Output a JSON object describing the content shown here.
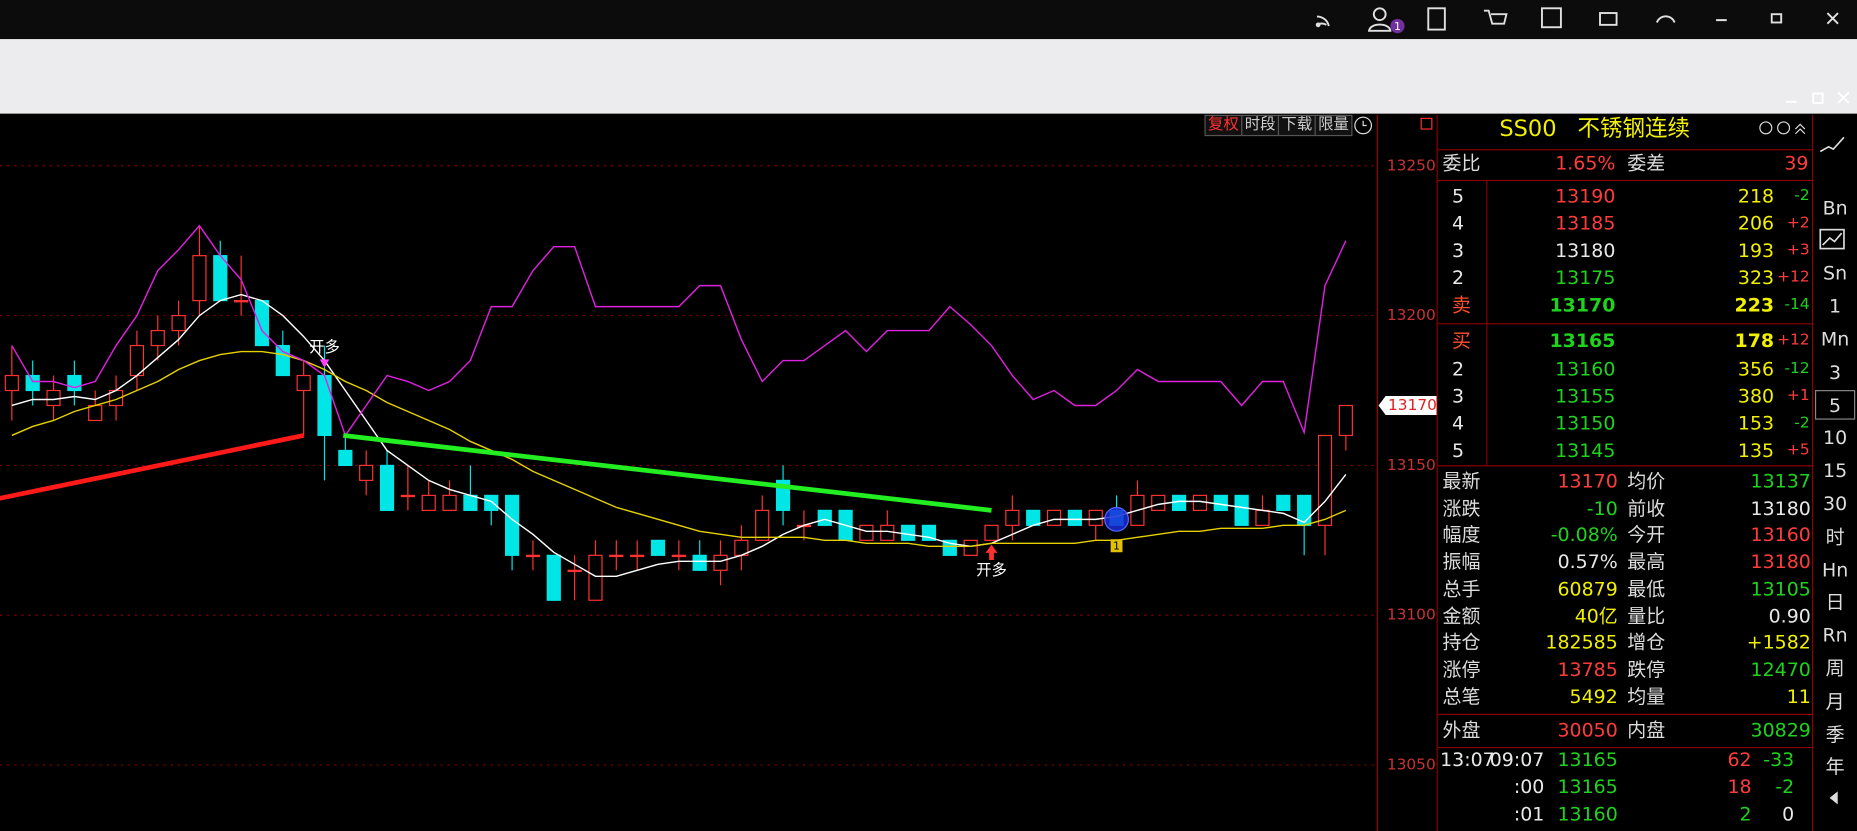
{
  "toolbar": {
    "badge": "1"
  },
  "chart_toolbar": [
    "复权",
    "时段",
    "下载",
    "限量"
  ],
  "chart_data": {
    "type": "candlestick",
    "categories": [
      null,
      null,
      null,
      null,
      null,
      null,
      null,
      null,
      null,
      null,
      null,
      null,
      null,
      null,
      null,
      null,
      null,
      null,
      null,
      null,
      null,
      null,
      null,
      null,
      null,
      null,
      null,
      null,
      null,
      null,
      null,
      null,
      null,
      null,
      null,
      null,
      null,
      null,
      null,
      null,
      null,
      null,
      null,
      null,
      null,
      null,
      null,
      null,
      null,
      null,
      null,
      null,
      null,
      null,
      null,
      null,
      null,
      null,
      null,
      null,
      null,
      null,
      null,
      null,
      null
    ],
    "open": [
      13175,
      13180,
      13170,
      13180,
      13165,
      13170,
      13180,
      13190,
      13195,
      13205,
      13220,
      13205,
      13205,
      13190,
      13175,
      13180,
      13155,
      13145,
      13150,
      13140,
      13135,
      13135,
      13140,
      13140,
      13140,
      13120,
      13120,
      13115,
      13105,
      13120,
      13120,
      13125,
      13120,
      13120,
      13115,
      13120,
      13125,
      13145,
      13130,
      13135,
      13135,
      13125,
      13125,
      13130,
      13130,
      13125,
      13120,
      13125,
      13130,
      13135,
      13130,
      13135,
      13130,
      13135,
      13130,
      13135,
      13140,
      13135,
      13140,
      13140,
      13130,
      13140,
      13140,
      13130,
      13160
    ],
    "high": [
      13190,
      13185,
      13180,
      13185,
      13175,
      13180,
      13195,
      13200,
      13205,
      13230,
      13225,
      13220,
      13205,
      13195,
      13185,
      13190,
      13160,
      13155,
      13155,
      13150,
      13145,
      13145,
      13150,
      13140,
      13140,
      13125,
      13120,
      13120,
      13125,
      13125,
      13125,
      13125,
      13125,
      13125,
      13125,
      13130,
      13140,
      13150,
      13135,
      13135,
      13135,
      13130,
      13135,
      13130,
      13130,
      13125,
      13125,
      13130,
      13140,
      13135,
      13135,
      13135,
      13135,
      13140,
      13145,
      13140,
      13140,
      13140,
      13140,
      13140,
      13140,
      13140,
      13140,
      13160,
      13170
    ],
    "low": [
      13165,
      13170,
      13165,
      13170,
      13165,
      13165,
      13175,
      13185,
      13190,
      13200,
      13205,
      13200,
      13190,
      13180,
      13160,
      13145,
      13150,
      13140,
      13135,
      13135,
      13135,
      13135,
      13135,
      13130,
      13115,
      13115,
      13105,
      13105,
      13105,
      13115,
      13115,
      13120,
      13115,
      13115,
      13110,
      13115,
      13125,
      13130,
      13125,
      13130,
      13125,
      13125,
      13125,
      13125,
      13125,
      13120,
      13120,
      13125,
      13125,
      13130,
      13130,
      13130,
      13125,
      13130,
      13130,
      13135,
      13135,
      13135,
      13135,
      13130,
      13130,
      13135,
      13120,
      13120,
      13155
    ],
    "close": [
      13180,
      13175,
      13175,
      13175,
      13170,
      13175,
      13190,
      13195,
      13200,
      13220,
      13205,
      13205,
      13190,
      13180,
      13180,
      13160,
      13150,
      13150,
      13135,
      13140,
      13140,
      13140,
      13135,
      13135,
      13120,
      13120,
      13105,
      13115,
      13120,
      13120,
      13120,
      13120,
      13120,
      13115,
      13120,
      13125,
      13135,
      13135,
      13130,
      13130,
      13125,
      13130,
      13130,
      13125,
      13125,
      13120,
      13125,
      13130,
      13135,
      13130,
      13135,
      13130,
      13135,
      13130,
      13140,
      13140,
      13135,
      13140,
      13135,
      13130,
      13135,
      13135,
      13130,
      13160,
      13170
    ],
    "up_color": "#ff3232",
    "down_color": "#00e6e6",
    "lines": [
      {
        "color": "#ffffff",
        "values": [
          13170,
          13172,
          13172,
          13173,
          13172,
          13175,
          13180,
          13186,
          13192,
          13200,
          13205,
          13207,
          13205,
          13200,
          13193,
          13185,
          13175,
          13165,
          13155,
          13150,
          13145,
          13142,
          13140,
          13138,
          13132,
          13127,
          13121,
          13117,
          13113,
          13113,
          13115,
          13117,
          13118,
          13118,
          13118,
          13120,
          13123,
          13127,
          13130,
          13132,
          13130,
          13128,
          13128,
          13127,
          13126,
          13124,
          13123,
          13124,
          13127,
          13130,
          13132,
          13132,
          13132,
          13133,
          13135,
          13137,
          13138,
          13138,
          13137,
          13136,
          13135,
          13134,
          13131,
          13138,
          13147
        ]
      },
      {
        "color": "#e6d200",
        "values": [
          13160,
          13163,
          13165,
          13168,
          13170,
          13172,
          13175,
          13178,
          13182,
          13185,
          13187,
          13188,
          13188,
          13187,
          13185,
          13182,
          13178,
          13175,
          13171,
          13168,
          13165,
          13162,
          13158,
          13155,
          13152,
          13148,
          13145,
          13142,
          13139,
          13136,
          13134,
          13132,
          13130,
          13128,
          13127,
          13126,
          13126,
          13126,
          13126,
          13125,
          13125,
          13124,
          13124,
          13124,
          13123,
          13123,
          13123,
          13124,
          13124,
          13124,
          13124,
          13124,
          13125,
          13125,
          13126,
          13127,
          13128,
          13128,
          13129,
          13129,
          13129,
          13130,
          13130,
          13132,
          13135
        ]
      },
      {
        "color": "#e020e0",
        "values": [
          13190,
          13178,
          13178,
          13176,
          13178,
          13190,
          13200,
          13215,
          13222,
          13230,
          13220,
          13212,
          13195,
          13188,
          13185,
          13180,
          13160,
          13170,
          13180,
          13178,
          13175,
          13178,
          13185,
          13203,
          13203,
          13215,
          13223,
          13223,
          13203,
          13203,
          13203,
          13203,
          13203,
          13210,
          13210,
          13192,
          13178,
          13185,
          13185,
          13190,
          13195,
          13188,
          13195,
          13195,
          13195,
          13203,
          13197,
          13190,
          13180,
          13172,
          13175,
          13170,
          13170,
          13175,
          13182,
          13178,
          13178,
          13178,
          13178,
          13170,
          13178,
          13178,
          13161,
          13210,
          13225
        ]
      }
    ],
    "trend_lines": [
      {
        "color": "#ff1a1a",
        "from": [
          -0.6,
          13139
        ],
        "to": [
          14,
          13160
        ]
      },
      {
        "color": "#22ee22",
        "from": [
          15.9,
          13160
        ],
        "to": [
          47,
          13135
        ]
      }
    ],
    "annotations": [
      {
        "text": "开多",
        "index": 15,
        "price": 13183,
        "color": "#ff40ff"
      },
      {
        "text": "开多",
        "index": 47,
        "price": 13122,
        "color": "#ff3030"
      }
    ],
    "badge": {
      "text": "1",
      "index": 53,
      "price": 13123
    },
    "circle": {
      "index": 53,
      "price": 13132
    },
    "last_price": 13170,
    "ylim": [
      13028,
      13267
    ],
    "yticks": [
      13050,
      13100,
      13150,
      13200,
      13250
    ],
    "grid": true
  },
  "quote": {
    "code": "SS00",
    "name": "不锈钢连续",
    "ratio": [
      "委比",
      "1.65%",
      "委差",
      "39"
    ],
    "asks": [
      [
        "5",
        "13190",
        "218",
        "-2"
      ],
      [
        "4",
        "13185",
        "206",
        "+2"
      ],
      [
        "3",
        "13180",
        "193",
        "+3"
      ],
      [
        "2",
        "13175",
        "323",
        "+12"
      ],
      [
        "卖",
        "13170",
        "223",
        "-14"
      ]
    ],
    "bids": [
      [
        "买",
        "13165",
        "178",
        "+12"
      ],
      [
        "2",
        "13160",
        "356",
        "-12"
      ],
      [
        "3",
        "13155",
        "380",
        "+1"
      ],
      [
        "4",
        "13150",
        "153",
        "-2"
      ],
      [
        "5",
        "13145",
        "135",
        "+5"
      ]
    ],
    "stats": [
      [
        "最新",
        "13170",
        "均价",
        "13137"
      ],
      [
        "涨跌",
        "-10",
        "前收",
        "13180"
      ],
      [
        "幅度",
        "-0.08%",
        "今开",
        "13160"
      ],
      [
        "振幅",
        "0.57%",
        "最高",
        "13180"
      ],
      [
        "总手",
        "60879",
        "最低",
        "13105"
      ],
      [
        "金额",
        "40亿",
        "量比",
        "0.90"
      ],
      [
        "持仓",
        "182585",
        "增仓",
        "+1582"
      ],
      [
        "涨停",
        "13785",
        "跌停",
        "12470"
      ],
      [
        "总笔",
        "5492",
        "均量",
        "11"
      ]
    ],
    "outer": [
      "外盘",
      "30050",
      "内盘",
      "30829"
    ],
    "clock": "13:07",
    "ticks": [
      [
        "09:07",
        "13165",
        "62",
        "-33"
      ],
      [
        ":00",
        "13165",
        "18",
        "-2"
      ],
      [
        ":01",
        "13160",
        "2",
        "0"
      ]
    ]
  },
  "periods": [
    "Bn",
    "Sn",
    "1",
    "Mn",
    "3",
    "5",
    "10",
    "15",
    "30",
    "时",
    "Hn",
    "日",
    "Rn",
    "周",
    "月",
    "季",
    "年"
  ]
}
